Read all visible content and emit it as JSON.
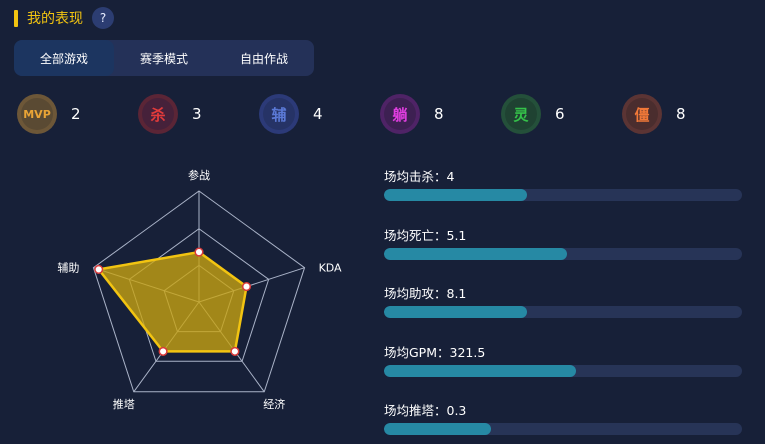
{
  "header": {
    "title": "我的表现",
    "help_label": "?"
  },
  "tabs": [
    {
      "label": "全部游戏",
      "active": true
    },
    {
      "label": "赛季模式",
      "active": false
    },
    {
      "label": "自由作战",
      "active": false
    }
  ],
  "badges": [
    {
      "icon": "mvp-medal-icon",
      "glyph": "MVP",
      "count": "2",
      "color": "#e9a436",
      "ring": "#6d5738",
      "bg": "#5a4a33"
    },
    {
      "icon": "kill-medal-icon",
      "glyph": "杀",
      "count": "3",
      "color": "#e23b3b",
      "ring": "#5b2536",
      "bg": "#46213a"
    },
    {
      "icon": "assist-medal-icon",
      "glyph": "辅",
      "count": "4",
      "color": "#5b79d6",
      "ring": "#2c3a78",
      "bg": "#263366"
    },
    {
      "icon": "lie-flat-medal-icon",
      "glyph": "躺",
      "count": "8",
      "color": "#e03ee0",
      "ring": "#4f2366",
      "bg": "#3d2052"
    },
    {
      "icon": "spirit-medal-icon",
      "glyph": "灵",
      "count": "6",
      "color": "#35c24a",
      "ring": "#24503a",
      "bg": "#1f4232"
    },
    {
      "icon": "stiff-medal-icon",
      "glyph": "僵",
      "count": "8",
      "color": "#f07838",
      "ring": "#5b3434",
      "bg": "#4a2d2e"
    }
  ],
  "radar": {
    "axes": [
      "参战",
      "KDA",
      "经济",
      "推塔",
      "辅助"
    ],
    "values": [
      0.45,
      0.45,
      0.55,
      0.55,
      0.95
    ],
    "max": 1,
    "fill_color": "#c9a411",
    "line_color": "#f2c411"
  },
  "stats": [
    {
      "label": "场均击杀：4",
      "fraction": 0.4
    },
    {
      "label": "场均死亡：5.1",
      "fraction": 0.51
    },
    {
      "label": "场均助攻：8.1",
      "fraction": 0.4
    },
    {
      "label": "场均GPM：321.5",
      "fraction": 0.535
    },
    {
      "label": "场均推塔：0.3",
      "fraction": 0.3
    }
  ]
}
